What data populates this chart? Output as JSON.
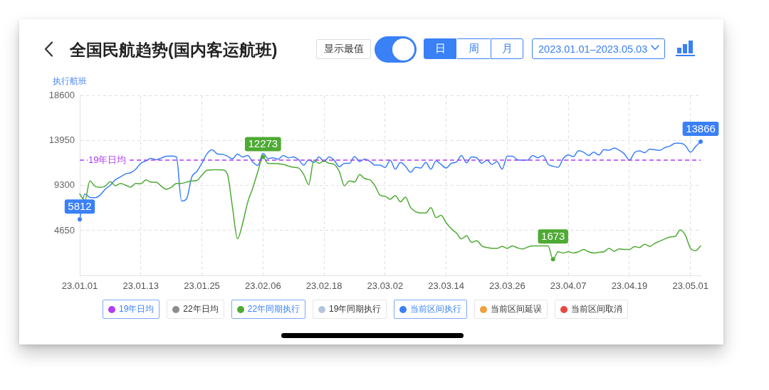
{
  "chart_data": {
    "type": "line",
    "title": "全国民航趋势(国内客运航班)",
    "ylabel": "执行航班",
    "annotations": [
      "显示最值",
      "日",
      "周",
      "月",
      "2023.01.01–2023.05.03"
    ],
    "x": [
      "2023-01-01",
      "2023-01-02",
      "2023-01-03",
      "2023-01-04",
      "2023-01-05",
      "2023-01-06",
      "2023-01-07",
      "2023-01-08",
      "2023-01-09",
      "2023-01-10",
      "2023-01-11",
      "2023-01-12",
      "2023-01-13",
      "2023-01-14",
      "2023-01-15",
      "2023-01-16",
      "2023-01-17",
      "2023-01-18",
      "2023-01-19",
      "2023-01-20",
      "2023-01-21",
      "2023-01-22",
      "2023-01-23",
      "2023-01-24",
      "2023-01-25",
      "2023-01-26",
      "2023-01-27",
      "2023-01-28",
      "2023-01-29",
      "2023-01-30",
      "2023-01-31",
      "2023-02-01",
      "2023-02-02",
      "2023-02-03",
      "2023-02-04",
      "2023-02-05",
      "2023-02-06",
      "2023-02-07",
      "2023-02-08",
      "2023-02-09",
      "2023-02-10",
      "2023-02-11",
      "2023-02-12",
      "2023-02-13",
      "2023-02-14",
      "2023-02-15",
      "2023-02-16",
      "2023-02-17",
      "2023-02-18",
      "2023-02-19",
      "2023-02-20",
      "2023-02-21",
      "2023-02-22",
      "2023-02-23",
      "2023-02-24",
      "2023-02-25",
      "2023-02-26",
      "2023-02-27",
      "2023-02-28",
      "2023-03-01",
      "2023-03-02",
      "2023-03-03",
      "2023-03-04",
      "2023-03-05",
      "2023-03-06",
      "2023-03-07",
      "2023-03-08",
      "2023-03-09",
      "2023-03-10",
      "2023-03-11",
      "2023-03-12",
      "2023-03-13",
      "2023-03-14",
      "2023-03-15",
      "2023-03-16",
      "2023-03-17",
      "2023-03-18",
      "2023-03-19",
      "2023-03-20",
      "2023-03-21",
      "2023-03-22",
      "2023-03-23",
      "2023-03-24",
      "2023-03-25",
      "2023-03-26",
      "2023-03-27",
      "2023-03-28",
      "2023-03-29",
      "2023-03-30",
      "2023-03-31",
      "2023-04-01",
      "2023-04-02",
      "2023-04-03",
      "2023-04-04",
      "2023-04-05",
      "2023-04-06",
      "2023-04-07",
      "2023-04-08",
      "2023-04-09",
      "2023-04-10",
      "2023-04-11",
      "2023-04-12",
      "2023-04-13",
      "2023-04-14",
      "2023-04-15",
      "2023-04-16",
      "2023-04-17",
      "2023-04-18",
      "2023-04-19",
      "2023-04-20",
      "2023-04-21",
      "2023-04-22",
      "2023-04-23",
      "2023-04-24",
      "2023-04-25",
      "2023-04-26",
      "2023-04-27",
      "2023-04-28",
      "2023-04-29",
      "2023-04-30",
      "2023-05-01",
      "2023-05-02",
      "2023-05-03"
    ],
    "series": [
      {
        "name": "22年日均",
        "color": "#8c8c8c",
        "values": [
          null,
          null,
          null,
          null,
          null,
          null,
          null,
          null,
          null,
          null,
          null,
          null,
          null,
          null,
          null,
          null,
          null,
          null,
          null,
          null,
          null,
          null,
          null,
          null,
          null,
          null,
          null,
          null,
          null,
          null,
          null,
          null,
          null,
          null,
          null,
          null,
          null,
          null,
          null,
          null,
          null,
          null,
          null,
          null,
          null,
          null,
          null,
          null,
          null,
          null,
          null,
          null,
          null,
          null,
          null,
          null,
          null,
          null,
          null,
          null,
          null,
          null,
          null,
          null,
          null,
          null,
          null,
          null,
          null,
          null,
          null,
          null,
          null,
          null,
          null,
          null,
          null,
          null,
          null,
          null,
          null,
          null,
          null,
          null,
          null,
          null,
          null,
          null,
          null,
          null,
          null,
          null,
          null,
          null,
          null,
          null,
          null,
          null,
          null,
          null,
          null,
          null,
          null,
          null,
          null,
          null,
          null,
          null,
          null,
          null,
          null,
          null,
          null,
          null,
          null,
          null,
          null,
          null,
          null,
          null,
          null,
          null,
          null
        ]
      },
      {
        "name": "22年同期执行",
        "color": "#4eaa34",
        "values": [
          8440,
          7750,
          9790,
          9230,
          9130,
          9250,
          9710,
          9300,
          9540,
          9350,
          9150,
          9540,
          9490,
          9910,
          9670,
          9670,
          9250,
          8930,
          9130,
          9540,
          9540,
          9670,
          9790,
          9840,
          10400,
          10890,
          10940,
          10960,
          10940,
          10520,
          7100,
          3790,
          5380,
          7590,
          9050,
          10770,
          12273,
          11620,
          11600,
          11570,
          11500,
          11330,
          11210,
          11130,
          10470,
          9420,
          11940,
          11620,
          11870,
          11620,
          11500,
          10770,
          9300,
          9790,
          9670,
          10450,
          10030,
          9910,
          9300,
          8320,
          8200,
          7900,
          8270,
          7630,
          8120,
          7050,
          6610,
          6480,
          6480,
          7020,
          5990,
          6240,
          5460,
          4850,
          4400,
          3790,
          4110,
          3430,
          3600,
          3060,
          2890,
          2810,
          2810,
          3010,
          2810,
          3060,
          2860,
          2740,
          2940,
          3060,
          3060,
          3060,
          3060,
          1673,
          2450,
          2320,
          2450,
          2320,
          2450,
          2690,
          2450,
          2320,
          2400,
          2450,
          2810,
          2500,
          2740,
          2690,
          2690,
          2990,
          2890,
          3230,
          3010,
          3330,
          3550,
          3790,
          3990,
          4040,
          4720,
          4160,
          2810,
          2570,
          3060
        ],
        "value_labels": [
          null,
          null,
          null,
          null,
          null,
          null,
          null,
          null,
          null,
          null,
          null,
          null,
          null,
          null,
          null,
          null,
          null,
          null,
          null,
          null,
          null,
          null,
          null,
          null,
          null,
          null,
          null,
          null,
          null,
          null,
          null,
          null,
          null,
          null,
          null,
          null,
          "12273",
          null,
          null,
          null,
          null,
          null,
          null,
          null,
          null,
          null,
          null,
          null,
          null,
          null,
          null,
          null,
          null,
          null,
          null,
          null,
          null,
          null,
          null,
          null,
          null,
          null,
          null,
          null,
          null,
          null,
          null,
          null,
          null,
          null,
          null,
          null,
          null,
          null,
          null,
          null,
          null,
          null,
          null,
          null,
          null,
          null,
          null,
          null,
          null,
          null,
          null,
          null,
          null,
          null,
          null,
          null,
          null,
          "1673",
          null,
          null,
          null,
          null,
          null,
          null,
          null,
          null,
          null,
          null,
          null,
          null,
          null,
          null,
          null,
          null,
          null,
          null,
          null,
          null,
          null,
          null,
          null,
          null,
          null,
          null,
          null,
          null,
          null
        ]
      },
      {
        "name": "19年同期执行",
        "color": "#b4c6dc",
        "values": [
          null,
          null,
          null,
          null,
          null,
          null,
          null,
          null,
          null,
          null,
          null,
          null,
          null,
          null,
          null,
          null,
          null,
          null,
          null,
          null,
          null,
          null,
          null,
          null,
          null,
          null,
          null,
          null,
          null,
          null,
          null,
          null,
          null,
          null,
          null,
          null,
          null,
          null,
          null,
          null,
          null,
          null,
          null,
          null,
          null,
          null,
          null,
          null,
          null,
          null,
          null,
          null,
          null,
          null,
          null,
          null,
          null,
          null,
          null,
          null,
          null,
          null,
          null,
          null,
          null,
          null,
          null,
          null,
          null,
          null,
          null,
          null,
          null,
          null,
          null,
          null,
          null,
          null,
          null,
          null,
          null,
          null,
          null,
          null,
          null,
          null,
          null,
          null,
          null,
          null,
          null,
          null,
          null,
          null,
          null,
          null,
          null,
          null,
          null,
          null,
          null,
          null,
          null,
          null,
          null,
          null,
          null,
          null,
          null,
          null,
          null,
          null,
          null,
          null,
          null,
          null,
          null,
          null,
          null,
          null,
          null,
          null,
          null
        ]
      },
      {
        "name": "当前区间执行",
        "color": "#3a80f6",
        "values": [
          5812,
          8440,
          8080,
          8050,
          8320,
          8930,
          9350,
          9910,
          10200,
          10520,
          10640,
          11010,
          11620,
          11870,
          12140,
          11990,
          12160,
          12360,
          12380,
          12280,
          7710,
          7950,
          10180,
          10770,
          11620,
          12600,
          13020,
          12600,
          12550,
          12360,
          12090,
          12580,
          12280,
          12430,
          11750,
          11400,
          12650,
          12110,
          12190,
          12040,
          12430,
          12190,
          12280,
          11990,
          11430,
          11990,
          11700,
          12280,
          11800,
          12280,
          11940,
          11260,
          11620,
          11620,
          12310,
          11800,
          12060,
          11820,
          11430,
          11430,
          11180,
          11940,
          11010,
          11700,
          11310,
          10690,
          11210,
          11130,
          11700,
          11010,
          11870,
          11500,
          11130,
          11620,
          11750,
          12430,
          11670,
          12280,
          12190,
          11620,
          11940,
          11500,
          11800,
          11010,
          12360,
          12360,
          11990,
          11940,
          11940,
          12430,
          12190,
          12430,
          11550,
          11310,
          11210,
          12110,
          12480,
          12310,
          12920,
          12770,
          12430,
          12770,
          12480,
          13040,
          12970,
          13210,
          12970,
          12600,
          11940,
          12720,
          12900,
          12720,
          13090,
          13020,
          12970,
          13260,
          13410,
          13700,
          13700,
          13460,
          12770,
          13340,
          13866
        ],
        "value_labels": [
          "5812",
          null,
          null,
          null,
          null,
          null,
          null,
          null,
          null,
          null,
          null,
          null,
          null,
          null,
          null,
          null,
          null,
          null,
          null,
          null,
          null,
          null,
          null,
          null,
          null,
          null,
          null,
          null,
          null,
          null,
          null,
          null,
          null,
          null,
          null,
          null,
          null,
          null,
          null,
          null,
          null,
          null,
          null,
          null,
          null,
          null,
          null,
          null,
          null,
          null,
          null,
          null,
          null,
          null,
          null,
          null,
          null,
          null,
          null,
          null,
          null,
          null,
          null,
          null,
          null,
          null,
          null,
          null,
          null,
          null,
          null,
          null,
          null,
          null,
          null,
          null,
          null,
          null,
          null,
          null,
          null,
          null,
          null,
          null,
          null,
          null,
          null,
          null,
          null,
          null,
          null,
          null,
          null,
          null,
          null,
          null,
          null,
          null,
          null,
          null,
          null,
          null,
          null,
          null,
          null,
          null,
          null,
          null,
          null,
          null,
          null,
          null,
          null,
          null,
          null,
          null,
          null,
          null,
          null,
          null,
          null,
          null,
          "13866"
        ]
      },
      {
        "name": "当前区间延误",
        "color": "#f0a03c",
        "values": [
          null,
          null,
          null,
          null,
          null,
          null,
          null,
          null,
          null,
          null,
          null,
          null,
          null,
          null,
          null,
          null,
          null,
          null,
          null,
          null,
          null,
          null,
          null,
          null,
          null,
          null,
          null,
          null,
          null,
          null,
          null,
          null,
          null,
          null,
          null,
          null,
          null,
          null,
          null,
          null,
          null,
          null,
          null,
          null,
          null,
          null,
          null,
          null,
          null,
          null,
          null,
          null,
          null,
          null,
          null,
          null,
          null,
          null,
          null,
          null,
          null,
          null,
          null,
          null,
          null,
          null,
          null,
          null,
          null,
          null,
          null,
          null,
          null,
          null,
          null,
          null,
          null,
          null,
          null,
          null,
          null,
          null,
          null,
          null,
          null,
          null,
          null,
          null,
          null,
          null,
          null,
          null,
          null,
          null,
          null,
          null,
          null,
          null,
          null,
          null,
          null,
          null,
          null,
          null,
          null,
          null,
          null,
          null,
          null,
          null,
          null,
          null,
          null,
          null,
          null,
          null,
          null,
          null,
          null,
          null,
          null,
          null,
          null
        ]
      },
      {
        "name": "当前区间取消",
        "color": "#e8483f",
        "values": [
          null,
          null,
          null,
          null,
          null,
          null,
          null,
          null,
          null,
          null,
          null,
          null,
          null,
          null,
          null,
          null,
          null,
          null,
          null,
          null,
          null,
          null,
          null,
          null,
          null,
          null,
          null,
          null,
          null,
          null,
          null,
          null,
          null,
          null,
          null,
          null,
          null,
          null,
          null,
          null,
          null,
          null,
          null,
          null,
          null,
          null,
          null,
          null,
          null,
          null,
          null,
          null,
          null,
          null,
          null,
          null,
          null,
          null,
          null,
          null,
          null,
          null,
          null,
          null,
          null,
          null,
          null,
          null,
          null,
          null,
          null,
          null,
          null,
          null,
          null,
          null,
          null,
          null,
          null,
          null,
          null,
          null,
          null,
          null,
          null,
          null,
          null,
          null,
          null,
          null,
          null,
          null,
          null,
          null,
          null,
          null,
          null,
          null,
          null,
          null,
          null,
          null,
          null,
          null,
          null,
          null,
          null,
          null,
          null,
          null,
          null,
          null,
          null,
          null,
          null,
          null,
          null,
          null,
          null,
          null,
          null,
          null,
          null
        ]
      }
    ],
    "ref_lines": [
      {
        "axis": "y",
        "value": 11950,
        "label": "19年日均",
        "color": "#b13cf2",
        "line_style": "dashed"
      }
    ],
    "xlim": [
      "2023-01-01",
      "2023-05-03"
    ],
    "xticks": [
      {
        "value": "2023-01-01",
        "label": "23.01.01"
      },
      {
        "value": "2023-01-13",
        "label": "23.01.13"
      },
      {
        "value": "2023-01-25",
        "label": "23.01.25"
      },
      {
        "value": "2023-02-06",
        "label": "23.02.06"
      },
      {
        "value": "2023-02-18",
        "label": "23.02.18"
      },
      {
        "value": "2023-03-02",
        "label": "23.03.02"
      },
      {
        "value": "2023-03-14",
        "label": "23.03.14"
      },
      {
        "value": "2023-03-26",
        "label": "23.03.26"
      },
      {
        "value": "2023-04-07",
        "label": "23.04.07"
      },
      {
        "value": "2023-04-19",
        "label": "23.04.19"
      },
      {
        "value": "2023-05-01",
        "label": "23.05.01"
      }
    ],
    "ylim": [
      0,
      18600
    ],
    "yticks": [
      4650,
      9300,
      13950,
      18600
    ],
    "grid": true,
    "legend": "bottom"
  }
}
